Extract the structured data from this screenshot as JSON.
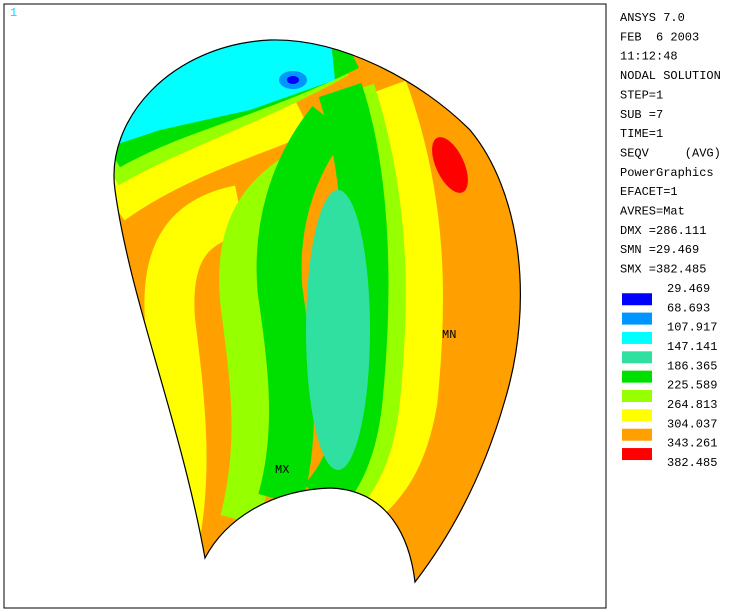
{
  "viewport_label": "1",
  "info_lines": [
    "ANSYS 7.0",
    "FEB  6 2003",
    "11:12:48",
    "NODAL SOLUTION",
    "STEP=1",
    "SUB =7",
    "TIME=1",
    "SEQV     (AVG)",
    "PowerGraphics",
    "EFACET=1",
    "AVRES=Mat",
    "DMX =286.111",
    "SMN =29.469",
    "SMX =382.485"
  ],
  "legend": {
    "levels": [
      "29.469",
      "68.693",
      "107.917",
      "147.141",
      "186.365",
      "225.589",
      "264.813",
      "304.037",
      "343.261",
      "382.485"
    ]
  },
  "markers": {
    "min": "MN",
    "max": "MX"
  }
}
